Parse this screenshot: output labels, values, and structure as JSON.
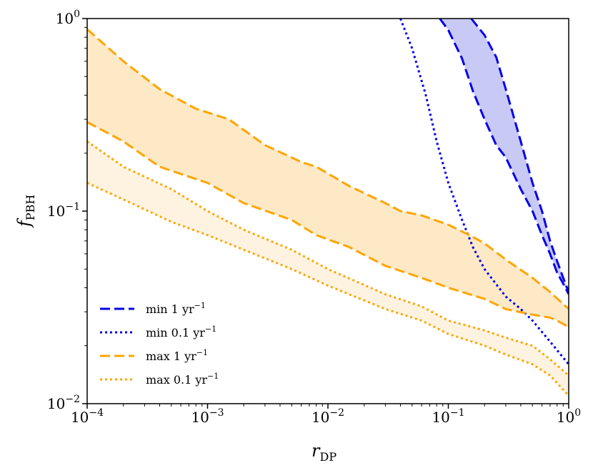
{
  "chart_data": {
    "type": "line",
    "xscale": "log",
    "yscale": "log",
    "xlim": [
      0.0001,
      1
    ],
    "ylim": [
      0.01,
      1
    ],
    "xlabel": "r",
    "xlabel_sub": "DP",
    "ylabel": "f",
    "ylabel_sub": "PBH",
    "x_ticks": [
      {
        "value": 0.0001,
        "base": "10",
        "exp": "−4"
      },
      {
        "value": 0.001,
        "base": "10",
        "exp": "−3"
      },
      {
        "value": 0.01,
        "base": "10",
        "exp": "−2"
      },
      {
        "value": 0.1,
        "base": "10",
        "exp": "−1"
      },
      {
        "value": 1,
        "base": "10",
        "exp": "0"
      }
    ],
    "y_ticks": [
      {
        "value": 0.01,
        "base": "10",
        "exp": "−2"
      },
      {
        "value": 0.1,
        "base": "10",
        "exp": "−1"
      },
      {
        "value": 1,
        "base": "10",
        "exp": "0"
      }
    ],
    "series": [
      {
        "name": "min 1 yr⁻¹",
        "label_base": "min 1 yr",
        "label_exp": "−1",
        "color": "#0000ee",
        "dash": "dashed",
        "band": true,
        "fill": "#c9c9f5",
        "upper": [
          [
            0.155,
            1.0
          ],
          [
            0.2,
            0.82
          ],
          [
            0.25,
            0.63
          ],
          [
            0.3,
            0.43
          ],
          [
            0.4,
            0.23
          ],
          [
            0.5,
            0.14
          ],
          [
            0.6,
            0.1
          ],
          [
            0.7,
            0.07
          ],
          [
            0.8,
            0.055
          ],
          [
            0.9,
            0.045
          ],
          [
            1.0,
            0.038
          ]
        ],
        "lower": [
          [
            0.085,
            1.0
          ],
          [
            0.1,
            0.87
          ],
          [
            0.13,
            0.62
          ],
          [
            0.16,
            0.42
          ],
          [
            0.2,
            0.3
          ],
          [
            0.25,
            0.22
          ],
          [
            0.3,
            0.19
          ],
          [
            0.4,
            0.13
          ],
          [
            0.5,
            0.1
          ],
          [
            0.6,
            0.075
          ],
          [
            0.7,
            0.06
          ],
          [
            0.8,
            0.048
          ],
          [
            0.9,
            0.042
          ],
          [
            1.0,
            0.037
          ]
        ]
      },
      {
        "name": "min 0.1 yr⁻¹",
        "label_base": "min 0.1 yr",
        "label_exp": "−1",
        "color": "#0000ee",
        "dash": "dotted",
        "band": false,
        "points": [
          [
            0.04,
            1.0
          ],
          [
            0.05,
            0.7
          ],
          [
            0.065,
            0.4
          ],
          [
            0.08,
            0.23
          ],
          [
            0.1,
            0.14
          ],
          [
            0.13,
            0.09
          ],
          [
            0.16,
            0.065
          ],
          [
            0.2,
            0.05
          ],
          [
            0.3,
            0.036
          ],
          [
            0.4,
            0.031
          ],
          [
            0.5,
            0.027
          ],
          [
            0.7,
            0.021
          ],
          [
            1.0,
            0.016
          ]
        ]
      },
      {
        "name": "max 1 yr⁻¹",
        "label_base": "max 1 yr",
        "label_exp": "−1",
        "color": "#ffa500",
        "dash": "dashed",
        "band": true,
        "fill": "#fde9c6",
        "upper": [
          [
            0.0001,
            0.88
          ],
          [
            0.0002,
            0.6
          ],
          [
            0.0004,
            0.43
          ],
          [
            0.0008,
            0.34
          ],
          [
            0.0015,
            0.3
          ],
          [
            0.003,
            0.22
          ],
          [
            0.006,
            0.18
          ],
          [
            0.008,
            0.17
          ],
          [
            0.015,
            0.135
          ],
          [
            0.03,
            0.11
          ],
          [
            0.04,
            0.1
          ],
          [
            0.06,
            0.095
          ],
          [
            0.1,
            0.085
          ],
          [
            0.15,
            0.075
          ],
          [
            0.2,
            0.068
          ],
          [
            0.3,
            0.056
          ],
          [
            0.5,
            0.045
          ],
          [
            0.7,
            0.038
          ],
          [
            1.0,
            0.031
          ]
        ],
        "lower": [
          [
            0.0001,
            0.29
          ],
          [
            0.0002,
            0.23
          ],
          [
            0.0004,
            0.17
          ],
          [
            0.001,
            0.14
          ],
          [
            0.002,
            0.11
          ],
          [
            0.005,
            0.09
          ],
          [
            0.008,
            0.075
          ],
          [
            0.015,
            0.065
          ],
          [
            0.03,
            0.052
          ],
          [
            0.06,
            0.045
          ],
          [
            0.1,
            0.04
          ],
          [
            0.2,
            0.035
          ],
          [
            0.3,
            0.031
          ],
          [
            0.5,
            0.029
          ],
          [
            0.7,
            0.028
          ],
          [
            0.8,
            0.027
          ],
          [
            1.0,
            0.025
          ]
        ]
      },
      {
        "name": "max 0.1 yr⁻¹",
        "label_base": "max 0.1 yr",
        "label_exp": "−1",
        "color": "#ffa500",
        "dash": "dotted",
        "band": true,
        "fill": "#fef3e0",
        "upper": [
          [
            0.0001,
            0.23
          ],
          [
            0.0002,
            0.17
          ],
          [
            0.0005,
            0.13
          ],
          [
            0.001,
            0.1
          ],
          [
            0.002,
            0.08
          ],
          [
            0.005,
            0.063
          ],
          [
            0.01,
            0.05
          ],
          [
            0.03,
            0.037
          ],
          [
            0.06,
            0.032
          ],
          [
            0.1,
            0.027
          ],
          [
            0.2,
            0.024
          ],
          [
            0.3,
            0.022
          ],
          [
            0.5,
            0.02
          ],
          [
            0.7,
            0.017
          ],
          [
            1.0,
            0.014
          ]
        ],
        "lower": [
          [
            0.0001,
            0.14
          ],
          [
            0.0002,
            0.115
          ],
          [
            0.0005,
            0.088
          ],
          [
            0.001,
            0.075
          ],
          [
            0.002,
            0.063
          ],
          [
            0.005,
            0.05
          ],
          [
            0.01,
            0.041
          ],
          [
            0.03,
            0.031
          ],
          [
            0.06,
            0.027
          ],
          [
            0.1,
            0.023
          ],
          [
            0.2,
            0.02
          ],
          [
            0.3,
            0.018
          ],
          [
            0.5,
            0.016
          ],
          [
            0.7,
            0.014
          ],
          [
            1.0,
            0.011
          ]
        ]
      }
    ]
  }
}
